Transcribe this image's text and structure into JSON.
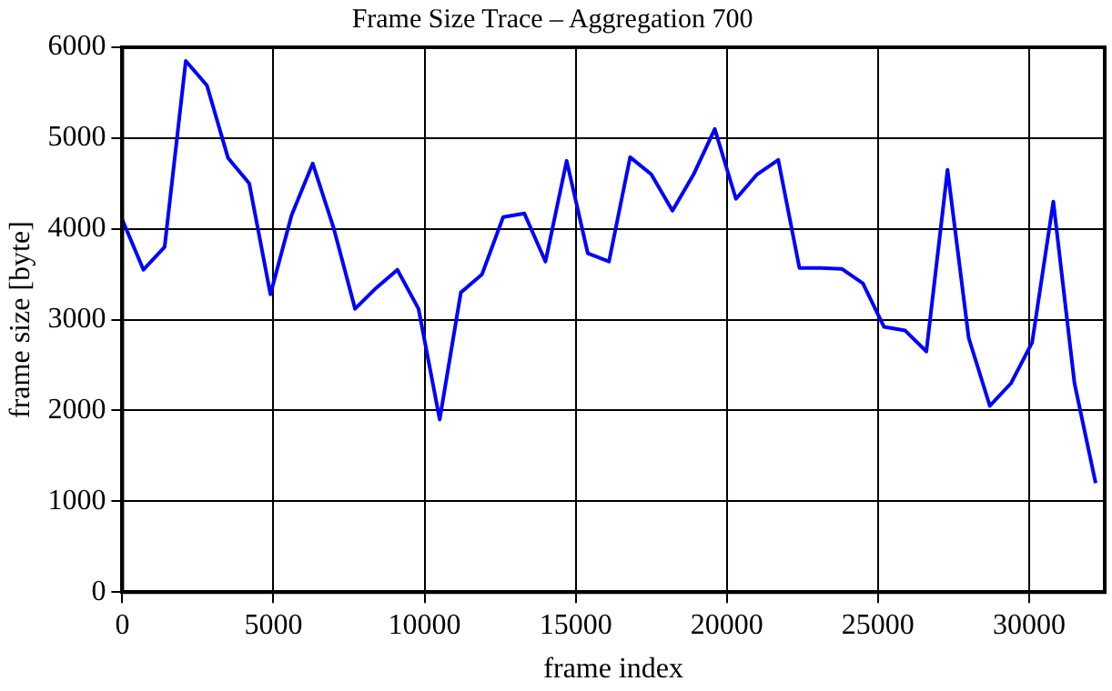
{
  "chart_data": {
    "type": "line",
    "title": "Frame Size Trace – Aggregation 700",
    "xlabel": "frame index",
    "ylabel": "frame size [byte]",
    "x": [
      0,
      700,
      1400,
      2100,
      2800,
      3500,
      4200,
      4900,
      5600,
      6300,
      7000,
      7700,
      8400,
      9100,
      9800,
      10500,
      11200,
      11900,
      12600,
      13300,
      14000,
      14700,
      15400,
      16100,
      16800,
      17500,
      18200,
      18900,
      19600,
      20300,
      21000,
      21700,
      22400,
      23100,
      23800,
      24500,
      25200,
      25900,
      26600,
      27300,
      28000,
      28700,
      29400,
      30100,
      30800,
      31500,
      32200
    ],
    "series": [
      {
        "color": "#0000ff",
        "values": [
          4100,
          3550,
          3800,
          5850,
          5580,
          4780,
          4500,
          3280,
          4150,
          4720,
          4000,
          3120,
          3350,
          3550,
          3120,
          1900,
          3300,
          3500,
          4130,
          4170,
          3640,
          4750,
          3730,
          3640,
          4790,
          4600,
          4200,
          4600,
          5100,
          4330,
          4600,
          4760,
          3570,
          3570,
          3560,
          3400,
          2920,
          2880,
          2650,
          4650,
          2800,
          2050,
          2300,
          2750,
          4300,
          2300,
          1200
        ]
      }
    ],
    "xlim": [
      0,
      32500
    ],
    "ylim": [
      0,
      6000
    ],
    "xticks": [
      0,
      5000,
      10000,
      15000,
      20000,
      25000,
      30000
    ],
    "yticks": [
      0,
      1000,
      2000,
      3000,
      4000,
      5000,
      6000
    ],
    "grid": true,
    "legend": false,
    "marker": "none",
    "line_style": "solid"
  }
}
